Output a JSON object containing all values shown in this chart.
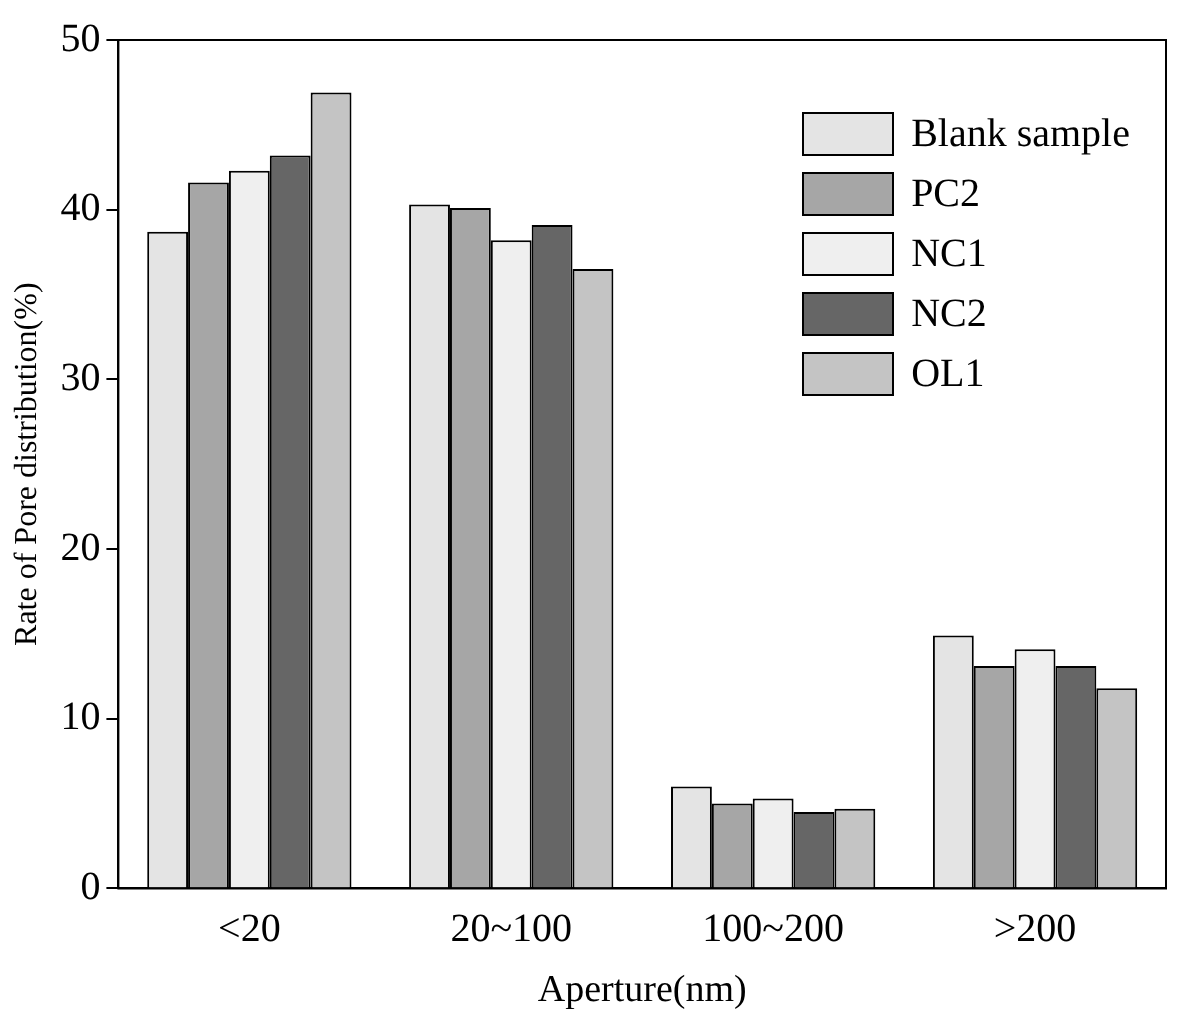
{
  "chart_data": {
    "type": "bar",
    "xlabel": "Aperture(nm)",
    "ylabel": "Rate of Pore distribution(%)",
    "categories": [
      "<20",
      "20~100",
      "100~200",
      ">200"
    ],
    "series": [
      {
        "name": "Blank sample",
        "color": "#e4e4e4",
        "values": [
          38.7,
          40.3,
          6.0,
          14.9
        ]
      },
      {
        "name": "PC2",
        "color": "#a6a6a6",
        "values": [
          41.6,
          40.1,
          5.0,
          13.1
        ]
      },
      {
        "name": "NC1",
        "color": "#efefef",
        "values": [
          42.3,
          38.2,
          5.3,
          14.1
        ]
      },
      {
        "name": "NC2",
        "color": "#666666",
        "values": [
          43.2,
          39.1,
          4.5,
          13.1
        ]
      },
      {
        "name": "OL1",
        "color": "#c4c4c4",
        "values": [
          46.9,
          36.5,
          4.7,
          11.8
        ]
      }
    ],
    "ylim": [
      0,
      50
    ],
    "yticks": [
      0,
      10,
      20,
      30,
      40,
      50
    ],
    "grid": false,
    "legend": "top right"
  }
}
